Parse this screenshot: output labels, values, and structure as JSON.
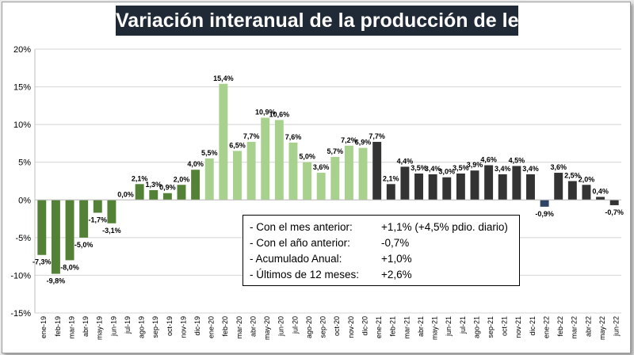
{
  "title": "Variación interanual de la producción de leche",
  "colors": {
    "dark_green": "#538135",
    "light_green": "#a9d18e",
    "dark_gray": "#333333",
    "navy": "#2f4464",
    "title_bg": "#202a37"
  },
  "stats_box": {
    "rows": [
      {
        "label": "- Con el mes anterior:",
        "value": "+1,1% (+4,5% pdio. diario)"
      },
      {
        "label": "- Con el año anterior:",
        "value": "-0,7%"
      },
      {
        "label": "- Acumulado Anual:",
        "value": "+1,0%"
      },
      {
        "label": "- Últimos de 12 meses:",
        "value": "+2,6%"
      }
    ]
  },
  "chart_data": {
    "type": "bar",
    "title": "Variación interanual de la producción de leche",
    "ylim": [
      -15,
      20
    ],
    "yticks": [
      -15,
      -10,
      -5,
      0,
      5,
      10,
      15,
      20
    ],
    "ytick_labels": [
      "-15%",
      "-10%",
      "-5%",
      "0%",
      "5%",
      "10%",
      "15%",
      "20%"
    ],
    "grid": true,
    "categories": [
      "ene-19",
      "feb-19",
      "mar-19",
      "abr-19",
      "may-19",
      "jun-19",
      "jul-19",
      "ago-19",
      "sep-19",
      "oct-19",
      "nov-19",
      "dic-19",
      "ene-20",
      "feb-20",
      "mar-20",
      "abr-20",
      "may-20",
      "jun-20",
      "jul-20",
      "ago-20",
      "sep-20",
      "oct-20",
      "nov-20",
      "dic-20",
      "ene-21",
      "feb-21",
      "mar-21",
      "abr-21",
      "may-21",
      "jun-21",
      "jul-21",
      "ago-21",
      "sep-21",
      "oct-21",
      "nov-21",
      "dic-21",
      "ene-22",
      "feb-22",
      "mar-22",
      "abr-22",
      "may-22",
      "jun-22"
    ],
    "values": [
      -7.3,
      -9.8,
      -8.0,
      -5.0,
      -1.7,
      -3.1,
      0.0,
      2.1,
      1.3,
      0.9,
      2.0,
      4.0,
      5.5,
      15.4,
      6.5,
      7.7,
      10.9,
      10.6,
      7.6,
      5.0,
      3.6,
      5.7,
      7.2,
      6.9,
      7.7,
      2.1,
      4.4,
      3.5,
      3.4,
      3.0,
      3.5,
      3.9,
      4.6,
      3.4,
      4.5,
      3.4,
      -0.9,
      3.6,
      2.5,
      2.0,
      0.4,
      -0.7
    ],
    "value_labels": [
      "-7,3%",
      "-9,8%",
      "-8,0%",
      "-5,0%",
      "-1,7%",
      "-3,1%",
      "0,0%",
      "2,1%",
      "1,3%",
      "0,9%",
      "2,0%",
      "4,0%",
      "5,5%",
      "15,4%",
      "6,5%",
      "7,7%",
      "10,9%",
      "10,6%",
      "7,6%",
      "5,0%",
      "3,6%",
      "5,7%",
      "7,2%",
      "6,9%",
      "7,7%",
      "2,1%",
      "4,4%",
      "3,5%",
      "3,4%",
      "3,0%",
      "3,5%",
      "3,9%",
      "4,6%",
      "3,4%",
      "4,5%",
      "3,4%",
      "-0,9%",
      "3,6%",
      "2,5%",
      "2,0%",
      "0,4%",
      "-0,7%"
    ],
    "bar_colors": [
      "#538135",
      "#538135",
      "#538135",
      "#538135",
      "#538135",
      "#538135",
      "#538135",
      "#538135",
      "#538135",
      "#538135",
      "#538135",
      "#538135",
      "#a9d18e",
      "#a9d18e",
      "#a9d18e",
      "#a9d18e",
      "#a9d18e",
      "#a9d18e",
      "#a9d18e",
      "#a9d18e",
      "#a9d18e",
      "#a9d18e",
      "#a9d18e",
      "#a9d18e",
      "#333333",
      "#333333",
      "#333333",
      "#333333",
      "#333333",
      "#333333",
      "#333333",
      "#333333",
      "#333333",
      "#333333",
      "#333333",
      "#333333",
      "#2f4464",
      "#333333",
      "#333333",
      "#333333",
      "#333333",
      "#333333"
    ]
  }
}
